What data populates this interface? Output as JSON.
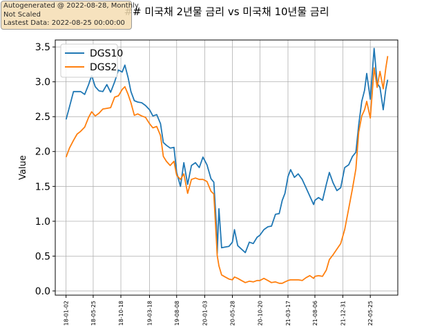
{
  "info_box": {
    "line1": "Autogenerated @ 2022-08-28, Monthly",
    "line2": "Not Scaled",
    "line3": "Lastest Data: 2022-08-25 00:00:00"
  },
  "colors": {
    "DGS10": "#1f77b4",
    "DGS2": "#ff7f0e",
    "grid": "#b0b0b0"
  },
  "chart_data": {
    "type": "line",
    "title": "## 미국채 2년물 금리 vs 미국채 10년물 금리",
    "xlabel": "",
    "ylabel": "Value",
    "ylim": [
      -0.06,
      3.6
    ],
    "yticks": [
      0.0,
      0.5,
      1.0,
      1.5,
      2.0,
      2.5,
      3.0,
      3.5
    ],
    "ytick_labels": [
      "0.0",
      "0.5",
      "1.0",
      "1.5",
      "2.0",
      "2.5",
      "3.0",
      "3.5"
    ],
    "xlim": [
      "2017-11-06",
      "2022-10-17"
    ],
    "xticks": [
      "2018-01-02",
      "2018-05-25",
      "2018-10-18",
      "2019-03-18",
      "2019-08-08",
      "2020-01-03",
      "2020-05-28",
      "2020-10-20",
      "2021-03-17",
      "2021-08-06",
      "2021-12-31",
      "2022-05-25"
    ],
    "xtick_labels": [
      "18-01-02",
      "18-05-25",
      "18-10-18",
      "19-03-18",
      "19-08-08",
      "20-01-03",
      "20-05-28",
      "20-10-20",
      "21-03-17",
      "21-08-06",
      "21-12-31",
      "22-05-25"
    ],
    "grid": true,
    "legend_position": "top-left",
    "series": [
      {
        "name": "DGS10",
        "x": [
          "2018-01-02",
          "2018-01-20",
          "2018-02-10",
          "2018-03-01",
          "2018-03-20",
          "2018-04-10",
          "2018-05-01",
          "2018-05-17",
          "2018-06-05",
          "2018-06-25",
          "2018-07-15",
          "2018-08-05",
          "2018-08-25",
          "2018-09-15",
          "2018-10-05",
          "2018-10-25",
          "2018-11-08",
          "2018-11-25",
          "2018-12-10",
          "2018-12-28",
          "2019-01-15",
          "2019-02-05",
          "2019-02-25",
          "2019-03-18",
          "2019-04-05",
          "2019-04-25",
          "2019-05-15",
          "2019-05-30",
          "2019-06-15",
          "2019-07-05",
          "2019-07-25",
          "2019-08-08",
          "2019-08-28",
          "2019-09-15",
          "2019-10-05",
          "2019-10-25",
          "2019-11-15",
          "2019-12-05",
          "2019-12-25",
          "2020-01-15",
          "2020-02-05",
          "2020-02-20",
          "2020-03-05",
          "2020-03-09",
          "2020-03-18",
          "2020-04-01",
          "2020-04-20",
          "2020-05-10",
          "2020-05-28",
          "2020-06-08",
          "2020-06-25",
          "2020-07-15",
          "2020-08-04",
          "2020-08-25",
          "2020-09-15",
          "2020-10-05",
          "2020-10-20",
          "2020-11-10",
          "2020-12-01",
          "2020-12-20",
          "2021-01-10",
          "2021-01-30",
          "2021-02-15",
          "2021-03-01",
          "2021-03-17",
          "2021-03-31",
          "2021-04-20",
          "2021-05-10",
          "2021-05-31",
          "2021-06-20",
          "2021-07-10",
          "2021-07-30",
          "2021-08-06",
          "2021-08-25",
          "2021-09-15",
          "2021-10-05",
          "2021-10-21",
          "2021-11-10",
          "2021-11-30",
          "2021-12-20",
          "2022-01-10",
          "2022-01-31",
          "2022-02-20",
          "2022-03-10",
          "2022-03-25",
          "2022-04-10",
          "2022-04-25",
          "2022-05-06",
          "2022-05-25",
          "2022-06-14",
          "2022-06-30",
          "2022-07-15",
          "2022-08-01",
          "2022-08-15",
          "2022-08-25"
        ],
        "values": [
          2.46,
          2.64,
          2.86,
          2.86,
          2.86,
          2.82,
          2.96,
          3.09,
          2.93,
          2.87,
          2.86,
          2.96,
          2.85,
          3.0,
          3.17,
          3.14,
          3.24,
          3.06,
          2.86,
          2.73,
          2.71,
          2.7,
          2.66,
          2.6,
          2.51,
          2.53,
          2.4,
          2.13,
          2.09,
          2.05,
          2.06,
          1.7,
          1.5,
          1.84,
          1.53,
          1.8,
          1.84,
          1.77,
          1.92,
          1.81,
          1.61,
          1.56,
          0.93,
          0.54,
          1.18,
          0.62,
          0.63,
          0.64,
          0.7,
          0.88,
          0.65,
          0.6,
          0.55,
          0.7,
          0.68,
          0.77,
          0.8,
          0.88,
          0.92,
          0.93,
          1.1,
          1.11,
          1.3,
          1.4,
          1.64,
          1.74,
          1.63,
          1.68,
          1.6,
          1.48,
          1.36,
          1.24,
          1.3,
          1.34,
          1.3,
          1.53,
          1.7,
          1.55,
          1.44,
          1.48,
          1.77,
          1.81,
          1.93,
          1.99,
          2.38,
          2.72,
          2.88,
          3.12,
          2.75,
          3.48,
          2.98,
          2.92,
          2.6,
          2.9,
          3.03
        ]
      },
      {
        "name": "DGS2",
        "x": [
          "2018-01-02",
          "2018-01-20",
          "2018-02-10",
          "2018-03-01",
          "2018-03-20",
          "2018-04-10",
          "2018-05-01",
          "2018-05-17",
          "2018-06-05",
          "2018-06-25",
          "2018-07-15",
          "2018-08-05",
          "2018-08-25",
          "2018-09-15",
          "2018-10-05",
          "2018-10-25",
          "2018-11-08",
          "2018-11-25",
          "2018-12-10",
          "2018-12-28",
          "2019-01-15",
          "2019-02-05",
          "2019-02-25",
          "2019-03-18",
          "2019-04-05",
          "2019-04-25",
          "2019-05-15",
          "2019-05-30",
          "2019-06-15",
          "2019-07-05",
          "2019-07-25",
          "2019-08-08",
          "2019-08-28",
          "2019-09-15",
          "2019-10-05",
          "2019-10-25",
          "2019-11-15",
          "2019-12-05",
          "2019-12-25",
          "2020-01-15",
          "2020-02-05",
          "2020-02-20",
          "2020-03-05",
          "2020-03-09",
          "2020-03-18",
          "2020-04-01",
          "2020-04-20",
          "2020-05-10",
          "2020-05-28",
          "2020-06-08",
          "2020-06-25",
          "2020-07-15",
          "2020-08-04",
          "2020-08-25",
          "2020-09-15",
          "2020-10-05",
          "2020-10-20",
          "2020-11-10",
          "2020-12-01",
          "2020-12-20",
          "2021-01-10",
          "2021-01-30",
          "2021-02-15",
          "2021-03-01",
          "2021-03-17",
          "2021-03-31",
          "2021-04-20",
          "2021-05-10",
          "2021-05-31",
          "2021-06-20",
          "2021-07-10",
          "2021-07-30",
          "2021-08-06",
          "2021-08-25",
          "2021-09-15",
          "2021-10-05",
          "2021-10-21",
          "2021-11-10",
          "2021-11-30",
          "2021-12-20",
          "2022-01-10",
          "2022-01-31",
          "2022-02-20",
          "2022-03-10",
          "2022-03-25",
          "2022-04-10",
          "2022-04-25",
          "2022-05-06",
          "2022-05-25",
          "2022-06-14",
          "2022-06-30",
          "2022-07-15",
          "2022-08-01",
          "2022-08-15",
          "2022-08-25"
        ],
        "values": [
          1.92,
          2.05,
          2.16,
          2.25,
          2.29,
          2.35,
          2.49,
          2.57,
          2.51,
          2.55,
          2.61,
          2.62,
          2.63,
          2.78,
          2.8,
          2.89,
          2.93,
          2.82,
          2.7,
          2.52,
          2.54,
          2.51,
          2.49,
          2.4,
          2.34,
          2.36,
          2.23,
          1.93,
          1.86,
          1.8,
          1.86,
          1.66,
          1.6,
          1.68,
          1.4,
          1.6,
          1.62,
          1.6,
          1.6,
          1.57,
          1.43,
          1.39,
          0.72,
          0.51,
          0.36,
          0.23,
          0.2,
          0.17,
          0.16,
          0.2,
          0.18,
          0.15,
          0.12,
          0.14,
          0.13,
          0.15,
          0.15,
          0.18,
          0.15,
          0.12,
          0.13,
          0.11,
          0.11,
          0.13,
          0.15,
          0.16,
          0.16,
          0.16,
          0.15,
          0.19,
          0.22,
          0.18,
          0.21,
          0.22,
          0.21,
          0.3,
          0.45,
          0.52,
          0.6,
          0.68,
          0.88,
          1.18,
          1.47,
          1.75,
          2.28,
          2.51,
          2.6,
          2.72,
          2.48,
          3.2,
          2.92,
          3.15,
          2.9,
          3.2,
          3.37
        ]
      }
    ]
  }
}
